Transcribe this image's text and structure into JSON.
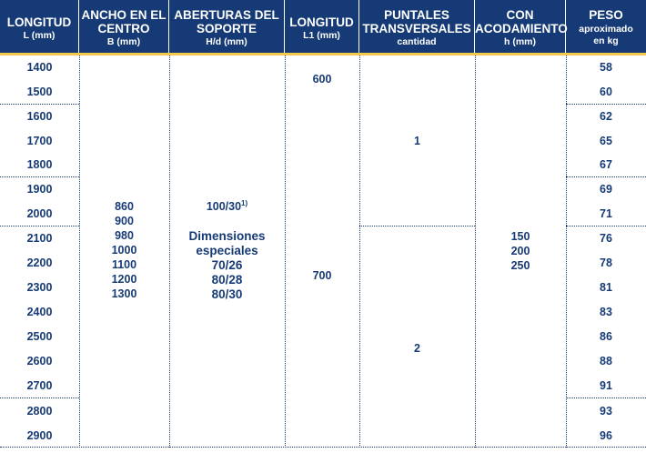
{
  "headers": {
    "longitud": {
      "main": [
        "LONGITUD"
      ],
      "sub": "L (mm)"
    },
    "ancho": {
      "main": [
        "ANCHO EN EL",
        "CENTRO"
      ],
      "sub": "B (mm)"
    },
    "aberturas": {
      "main": [
        "ABERTURAS DEL",
        "SOPORTE"
      ],
      "sub": "H/d (mm)"
    },
    "longitud_l1": {
      "main": [
        "LONGITUD"
      ],
      "sub": "L1 (mm)"
    },
    "puntales": {
      "main": [
        "PUNTALES",
        "TRANSVERSALES"
      ],
      "sub": "cantidad"
    },
    "acodamiento": {
      "main": [
        "CON",
        "ACODAMIENTO"
      ],
      "sub": "h (mm)"
    },
    "peso": {
      "main": [
        "PESO"
      ],
      "sub": [
        "aproximado",
        "en kg"
      ]
    }
  },
  "rows": [
    {
      "longitud": "1400",
      "peso": "58"
    },
    {
      "longitud": "1500",
      "peso": "60"
    },
    {
      "longitud": "1600",
      "peso": "62"
    },
    {
      "longitud": "1700",
      "peso": "65"
    },
    {
      "longitud": "1800",
      "peso": "67"
    },
    {
      "longitud": "1900",
      "peso": "69"
    },
    {
      "longitud": "2000",
      "peso": "71"
    },
    {
      "longitud": "2100",
      "peso": "76"
    },
    {
      "longitud": "2200",
      "peso": "78"
    },
    {
      "longitud": "2300",
      "peso": "81"
    },
    {
      "longitud": "2400",
      "peso": "83"
    },
    {
      "longitud": "2500",
      "peso": "86"
    },
    {
      "longitud": "2600",
      "peso": "88"
    },
    {
      "longitud": "2700",
      "peso": "91"
    },
    {
      "longitud": "2800",
      "peso": "93"
    },
    {
      "longitud": "2900",
      "peso": "96"
    }
  ],
  "ancho_values": [
    "860",
    "900",
    "980",
    "1000",
    "1100",
    "1200",
    "1300"
  ],
  "aberturas": {
    "standard": "100/30",
    "standard_footnote": "1)",
    "especiales_label": [
      "Dimensiones",
      "especiales"
    ],
    "especiales_values": [
      "70/26",
      "80/28",
      "80/30"
    ]
  },
  "l1_values": [
    "600",
    "700"
  ],
  "puntales_values": [
    "1",
    "2"
  ],
  "acodamiento_values": [
    "150",
    "200",
    "250"
  ],
  "colors": {
    "header_bg": "#163a75",
    "accent_line": "#f2c94c",
    "text": "#163a75"
  }
}
